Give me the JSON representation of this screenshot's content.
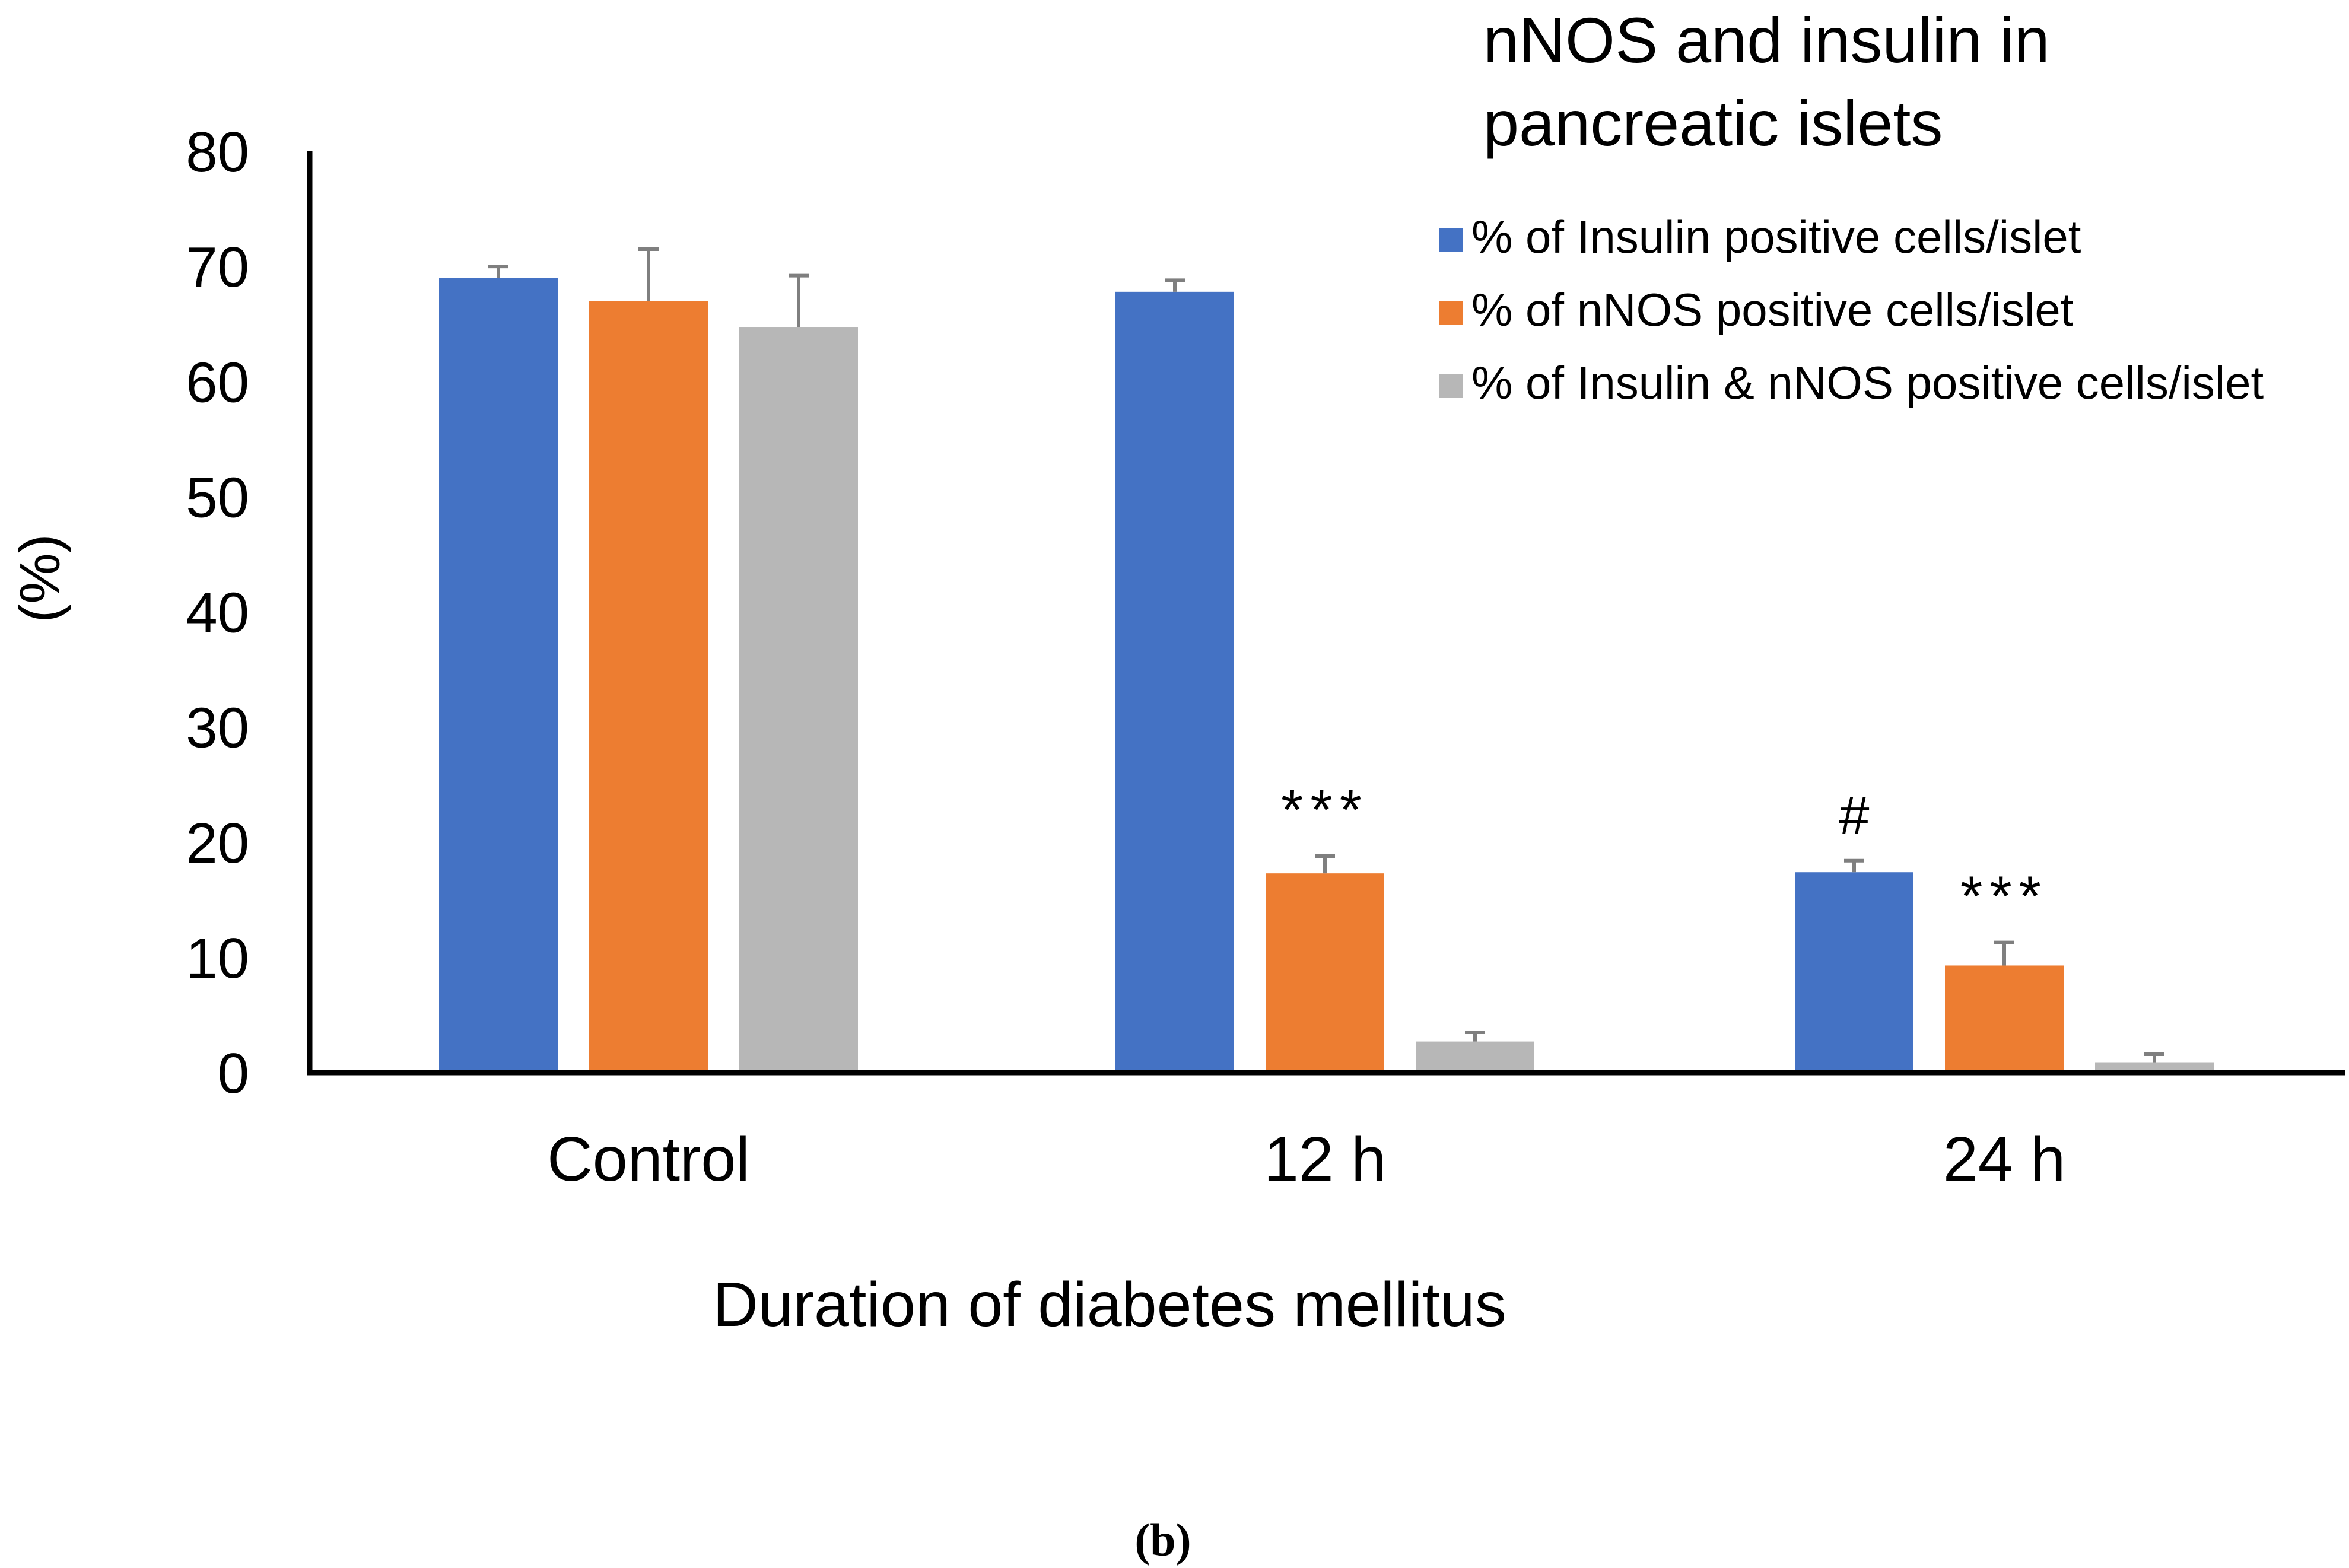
{
  "chart_data": {
    "type": "bar",
    "title": "nNOS and insulin in pancreatic islets",
    "title_lines": [
      "nNOS and insulin in",
      "pancreatic islets"
    ],
    "xlabel": "Duration of diabetes mellitus",
    "ylabel": "(%)",
    "ylim": [
      0,
      80
    ],
    "yticks": [
      0,
      10,
      20,
      30,
      40,
      50,
      60,
      70,
      80
    ],
    "categories": [
      "Control",
      "12 h",
      "24 h"
    ],
    "series": [
      {
        "name": "% of Insulin positive cells/islet",
        "color": "#4472c4",
        "values": [
          69.0,
          67.8,
          17.4
        ],
        "errors": [
          1.0,
          1.0,
          1.0
        ]
      },
      {
        "name": "% of nNOS positive cells/islet",
        "color": "#ed7d31",
        "values": [
          67.0,
          17.3,
          9.3
        ],
        "errors": [
          4.5,
          1.5,
          2.0
        ]
      },
      {
        "name": "% of Insulin & nNOS positive cells/islet",
        "color": "#b7b7b7",
        "values": [
          64.7,
          2.7,
          0.9
        ],
        "errors": [
          4.5,
          0.8,
          0.7
        ]
      }
    ],
    "annotations": [
      {
        "series": 1,
        "category": 1,
        "text": "***"
      },
      {
        "series": 0,
        "category": 2,
        "text": "#"
      },
      {
        "series": 1,
        "category": 2,
        "text": "***"
      }
    ],
    "legend_position": "top-right",
    "grid": false
  },
  "caption": "(b)"
}
